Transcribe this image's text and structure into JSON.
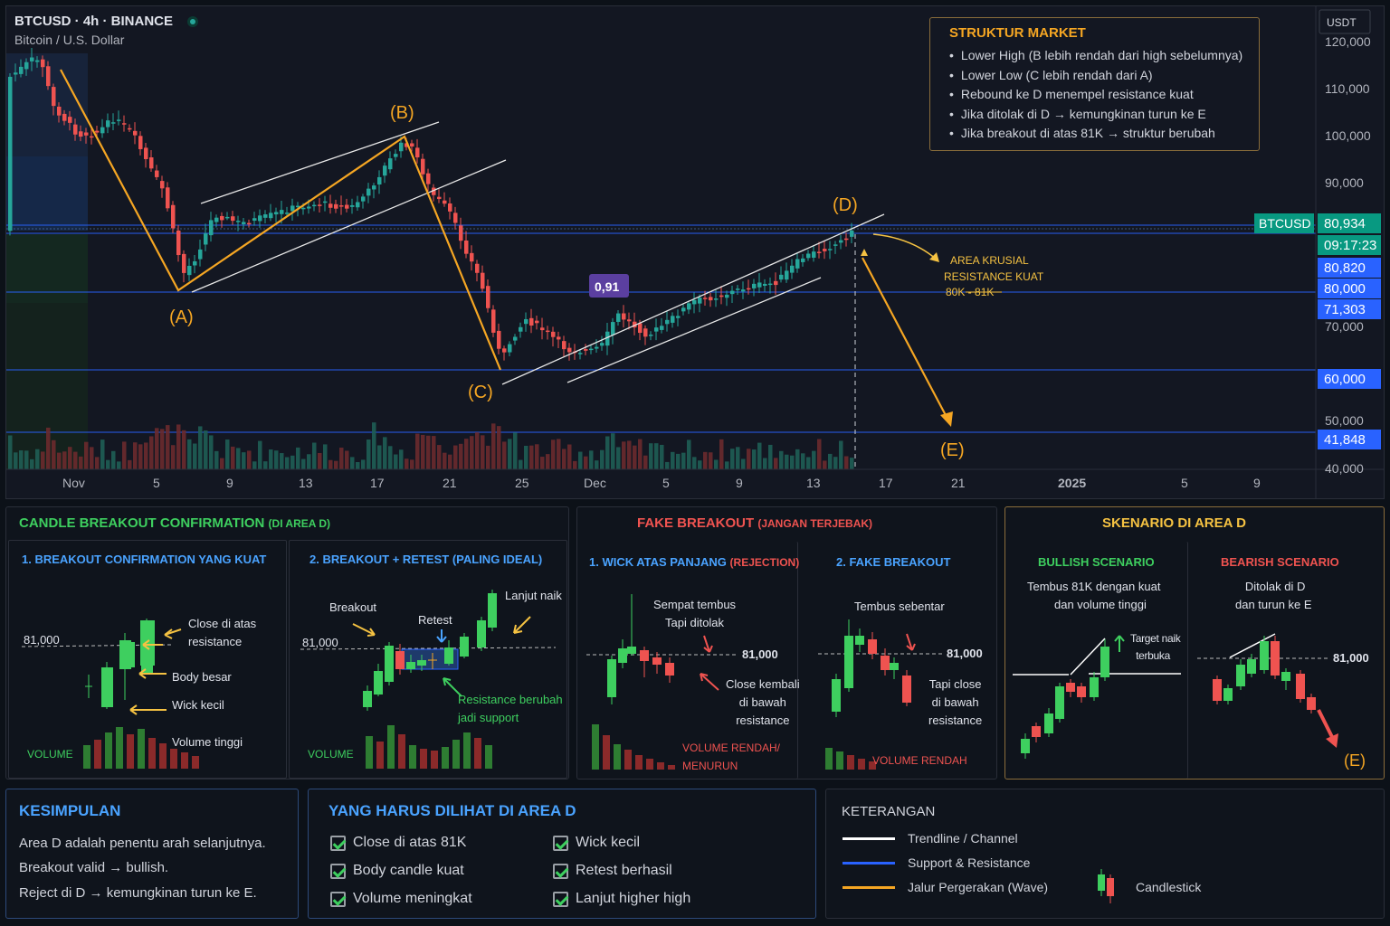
{
  "header": {
    "title": "BTCUSD · 4h · BINANCE",
    "subtitle": "Bitcoin / U.S. Dollar"
  },
  "price_axis": {
    "currency": "USDT",
    "ticks": [
      "120,000",
      "110,000",
      "100,000",
      "90,000",
      "70,000",
      "50,000",
      "40,000"
    ],
    "badges": [
      {
        "text": "80,934",
        "color": "#089981"
      },
      {
        "text": "09:17:23",
        "color": "#089981"
      },
      {
        "text": "80,820",
        "color": "#2962ff"
      },
      {
        "text": "80,000",
        "color": "#2962ff"
      },
      {
        "text": "71,303",
        "color": "#2962ff"
      },
      {
        "text": "60,000",
        "color": "#2962ff"
      },
      {
        "text": "41,848",
        "color": "#2962ff"
      }
    ],
    "symbol_tag": "BTCUSD"
  },
  "time_axis": {
    "ticks": [
      "Nov",
      "5",
      "9",
      "13",
      "17",
      "21",
      "25",
      "Dec",
      "5",
      "9",
      "13",
      "17",
      "21",
      "2025",
      "5",
      "9"
    ]
  },
  "wave_points": {
    "a": "(A)",
    "b": "(B)",
    "c": "(C)",
    "d": "(D)",
    "e": "(E)"
  },
  "label_091": "0,91",
  "crucial_area": {
    "line1": "AREA KRUSIAL",
    "line2": "RESISTANCE KUAT",
    "line3": "80K - 81K"
  },
  "market_structure": {
    "title": "STRUKTUR MARKET",
    "items": [
      "Lower High (B lebih rendah dari high sebelumnya)",
      "Lower Low (C lebih rendah dari A)",
      "Rebound ke D menempel resistance kuat",
      "Jika ditolak di D → kemungkinan turun ke E",
      "Jika breakout di atas 81K → struktur berubah"
    ]
  },
  "panel_confirm": {
    "title": "CANDLE BREAKOUT CONFIRMATION",
    "title_small": "(DI AREA D)",
    "sub1": {
      "title": "1. BREAKOUT CONFIRMATION YANG KUAT",
      "level": "81,000",
      "close_above_1": "Close di atas",
      "close_above_2": "resistance",
      "body": "Body besar",
      "wick": "Wick kecil",
      "volume_high": "Volume tinggi",
      "volume": "VOLUME"
    },
    "sub2": {
      "title": "2. BREAKOUT + RETEST (PALING IDEAL)",
      "level": "81,000",
      "breakout": "Breakout",
      "retest": "Retest",
      "continue": "Lanjut naik",
      "res_support_1": "Resistance berubah",
      "res_support_2": "jadi support",
      "volume": "VOLUME"
    }
  },
  "panel_fake": {
    "title": "FAKE BREAKOUT",
    "title_small": "(JANGAN TERJEBAK)",
    "sub1": {
      "title": "1. WICK ATAS PANJANG",
      "title_small": "(REJECTION)",
      "level": "81,000",
      "broke_1": "Sempat tembus",
      "broke_2": "Tapi ditolak",
      "back_1": "Close kembali",
      "back_2": "di bawah",
      "back_3": "resistance",
      "vol_1": "VOLUME RENDAH/",
      "vol_2": "MENURUN"
    },
    "sub2": {
      "title": "2. FAKE BREAKOUT",
      "level": "81,000",
      "briefly": "Tembus sebentar",
      "close_1": "Tapi close",
      "close_2": "di bawah",
      "close_3": "resistance",
      "vol": "VOLUME RENDAH"
    }
  },
  "panel_scenario": {
    "title": "SKENARIO DI AREA D",
    "bullish": {
      "title": "BULLISH SCENARIO",
      "desc_1": "Tembus 81K dengan kuat",
      "desc_2": "dan volume tinggi",
      "target_1": "Target naik",
      "target_2": "terbuka"
    },
    "bearish": {
      "title": "BEARISH SCENARIO",
      "desc_1": "Ditolak di D",
      "desc_2": "dan turun ke E",
      "level": "81,000",
      "e": "(E)"
    }
  },
  "conclusion": {
    "title": "KESIMPULAN",
    "lines": [
      "Area D adalah penentu arah selanjutnya.",
      "Breakout valid → bullish.",
      "Reject di D → kemungkinan turun ke E."
    ]
  },
  "checklist": {
    "title": "YANG HARUS DILIHAT DI AREA D",
    "items": [
      "Close di atas 81K",
      "Body candle kuat",
      "Volume meningkat",
      "Wick kecil",
      "Retest berhasil",
      "Lanjut higher high"
    ]
  },
  "legend": {
    "title": "KETERANGAN",
    "items": [
      {
        "label": "Trendline / Channel",
        "color": "#ffffff"
      },
      {
        "label": "Support & Resistance",
        "color": "#2962ff"
      },
      {
        "label": "Jalur Pergerakan (Wave)",
        "color": "#f5a623"
      }
    ],
    "candlestick": "Candlestick"
  },
  "colors": {
    "bull": "#26a69a",
    "bear": "#ef5350",
    "wave": "#f5a623",
    "support": "#2962ff",
    "panel_border": "#2a2e39"
  }
}
